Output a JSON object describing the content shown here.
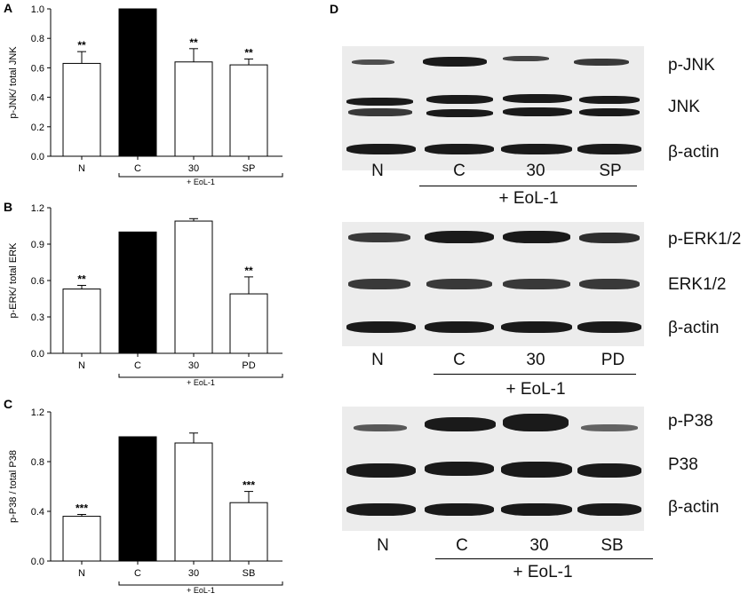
{
  "chart_data": [
    {
      "panel": "A",
      "type": "bar",
      "ylabel": "p-JNK/ total JNK",
      "categories": [
        "N",
        "C",
        "30",
        "SP"
      ],
      "values": [
        0.63,
        1.0,
        0.64,
        0.62
      ],
      "errors": [
        0.08,
        0,
        0.09,
        0.04
      ],
      "significance": [
        "**",
        "",
        "**",
        "**"
      ],
      "fills": [
        "#ffffff",
        "#000000",
        "#ffffff",
        "#ffffff"
      ],
      "ylim": [
        0,
        1.0
      ],
      "yticks": [
        "0.0",
        "0.2",
        "0.4",
        "0.6",
        "0.8",
        "1.0"
      ],
      "group_label": "+ EoL-1"
    },
    {
      "panel": "B",
      "type": "bar",
      "ylabel": "p-ERK/ total ERK",
      "categories": [
        "N",
        "C",
        "30",
        "PD"
      ],
      "values": [
        0.53,
        1.0,
        1.09,
        0.49
      ],
      "errors": [
        0.03,
        0,
        0.02,
        0.14
      ],
      "significance": [
        "**",
        "",
        "",
        "**"
      ],
      "fills": [
        "#ffffff",
        "#000000",
        "#ffffff",
        "#ffffff"
      ],
      "ylim": [
        0,
        1.2
      ],
      "yticks": [
        "0.0",
        "0.3",
        "0.6",
        "0.9",
        "1.2"
      ],
      "group_label": "+ EoL-1"
    },
    {
      "panel": "C",
      "type": "bar",
      "ylabel": "p-P38 / total P38",
      "categories": [
        "N",
        "C",
        "30",
        "SB"
      ],
      "values": [
        0.36,
        1.0,
        0.95,
        0.47
      ],
      "errors": [
        0.015,
        0,
        0.08,
        0.09
      ],
      "significance": [
        "***",
        "",
        "",
        "***"
      ],
      "fills": [
        "#ffffff",
        "#000000",
        "#ffffff",
        "#ffffff"
      ],
      "ylim": [
        0,
        1.2
      ],
      "yticks": [
        "0.0",
        "0.4",
        "0.8",
        "1.2"
      ],
      "group_label": "+ EoL-1"
    }
  ],
  "panel_d": {
    "letter": "D",
    "blots": [
      {
        "markers": [
          "p-JNK",
          "JNK",
          "β-actin"
        ],
        "lanes": [
          "N",
          "C",
          "30",
          "SP"
        ],
        "treatment": "+ EoL-1"
      },
      {
        "markers": [
          "p-ERK1/2",
          "ERK1/2",
          "β-actin"
        ],
        "lanes": [
          "N",
          "C",
          "30",
          "PD"
        ],
        "treatment": "+ EoL-1"
      },
      {
        "markers": [
          "p-P38",
          "P38",
          "β-actin"
        ],
        "lanes": [
          "N",
          "C",
          "30",
          "SB"
        ],
        "treatment": "+ EoL-1"
      }
    ]
  }
}
